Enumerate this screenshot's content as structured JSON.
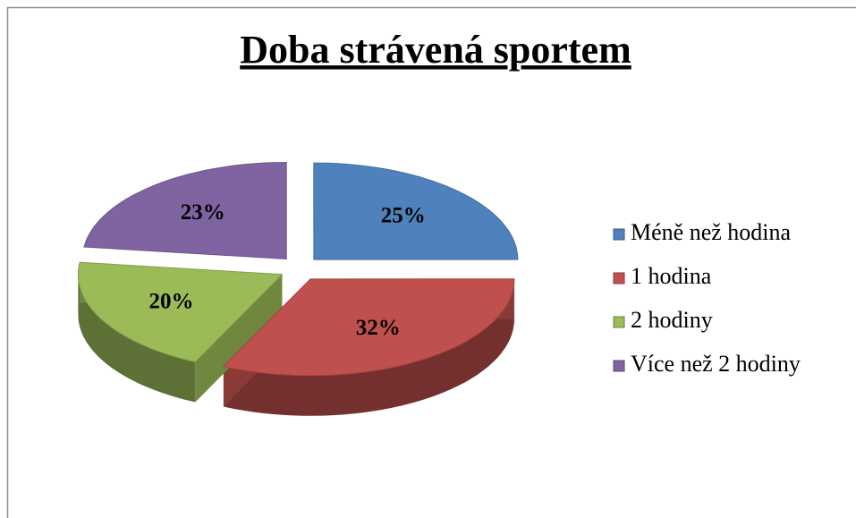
{
  "chart_data": {
    "type": "pie3d",
    "title": "Doba strávená sportem",
    "categories": [
      "Méně než hodina",
      "1 hodina",
      "2 hodiny",
      "Více než 2 hodiny"
    ],
    "values": [
      25,
      32,
      20,
      23
    ],
    "value_labels": [
      "25%",
      "32%",
      "20%",
      "23%"
    ],
    "colors": [
      "#4f81bd",
      "#c0504d",
      "#9bbb59",
      "#8064a2"
    ],
    "legend": "right"
  }
}
